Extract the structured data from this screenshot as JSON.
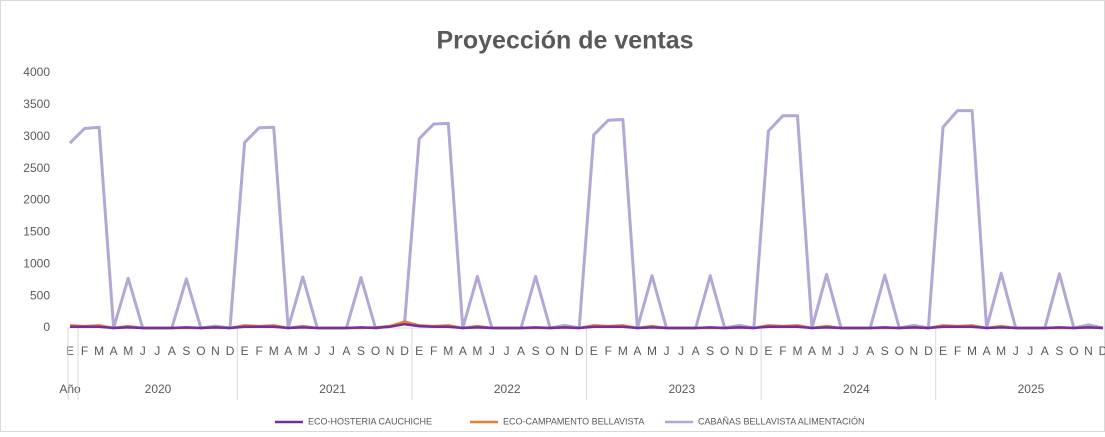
{
  "chart_data": {
    "type": "line",
    "title": "Proyección de ventas",
    "axis_corner_label": "Año",
    "years": [
      "2020",
      "2021",
      "2022",
      "2023",
      "2024",
      "2025"
    ],
    "categories": [
      "E",
      "F",
      "M",
      "A",
      "M",
      "J",
      "J",
      "A",
      "S",
      "O",
      "N",
      "D",
      "E",
      "F",
      "M",
      "A",
      "M",
      "J",
      "J",
      "A",
      "S",
      "O",
      "N",
      "D",
      "E",
      "F",
      "M",
      "A",
      "M",
      "J",
      "J",
      "A",
      "S",
      "O",
      "N",
      "D",
      "E",
      "F",
      "M",
      "A",
      "M",
      "J",
      "J",
      "A",
      "S",
      "O",
      "N",
      "D",
      "E",
      "F",
      "M",
      "A",
      "M",
      "J",
      "J",
      "A",
      "S",
      "O",
      "N",
      "D",
      "E",
      "F",
      "M",
      "A",
      "M",
      "J",
      "J",
      "A",
      "S",
      "O",
      "N",
      "D"
    ],
    "ylim": [
      0,
      4000
    ],
    "yticks": [
      0,
      500,
      1000,
      1500,
      2000,
      2500,
      3000,
      3500,
      4000
    ],
    "legend": "bottom",
    "series": [
      {
        "name": "ECO-HOSTERIA CAUCHICHE",
        "color": "#7030a0",
        "values": [
          20,
          20,
          20,
          0,
          10,
          0,
          0,
          0,
          10,
          0,
          10,
          0,
          20,
          20,
          20,
          0,
          10,
          0,
          0,
          0,
          10,
          0,
          20,
          60,
          30,
          20,
          20,
          0,
          10,
          0,
          0,
          0,
          10,
          0,
          10,
          0,
          20,
          20,
          20,
          0,
          10,
          0,
          0,
          0,
          10,
          0,
          10,
          0,
          20,
          20,
          20,
          0,
          10,
          0,
          0,
          0,
          10,
          0,
          10,
          0,
          20,
          20,
          20,
          0,
          10,
          0,
          0,
          0,
          10,
          0,
          10,
          0
        ]
      },
      {
        "name": "ECO-CAMPAMENTO BELLAVISTA",
        "color": "#ed7d31",
        "values": [
          40,
          30,
          40,
          0,
          30,
          0,
          0,
          0,
          0,
          0,
          10,
          0,
          40,
          30,
          40,
          0,
          30,
          0,
          0,
          0,
          0,
          10,
          30,
          100,
          40,
          30,
          40,
          0,
          30,
          0,
          0,
          0,
          0,
          0,
          10,
          0,
          40,
          30,
          40,
          0,
          30,
          0,
          0,
          0,
          0,
          0,
          10,
          0,
          40,
          30,
          40,
          0,
          30,
          0,
          0,
          0,
          0,
          0,
          10,
          0,
          40,
          30,
          40,
          0,
          30,
          0,
          0,
          0,
          0,
          0,
          10,
          0
        ]
      },
      {
        "name": "CABAÑAS BELLAVISTA ALIMENTACIÓN",
        "color": "#b4a7d6",
        "values": [
          2900,
          3130,
          3150,
          0,
          780,
          0,
          0,
          0,
          770,
          0,
          30,
          0,
          2910,
          3140,
          3150,
          0,
          800,
          0,
          0,
          0,
          790,
          0,
          30,
          80,
          2970,
          3200,
          3210,
          0,
          810,
          0,
          0,
          0,
          810,
          0,
          40,
          0,
          3030,
          3260,
          3270,
          0,
          820,
          0,
          0,
          0,
          820,
          0,
          40,
          0,
          3090,
          3330,
          3330,
          0,
          840,
          0,
          0,
          0,
          830,
          0,
          40,
          0,
          3150,
          3410,
          3410,
          0,
          860,
          0,
          0,
          0,
          850,
          0,
          50,
          0
        ]
      }
    ]
  }
}
